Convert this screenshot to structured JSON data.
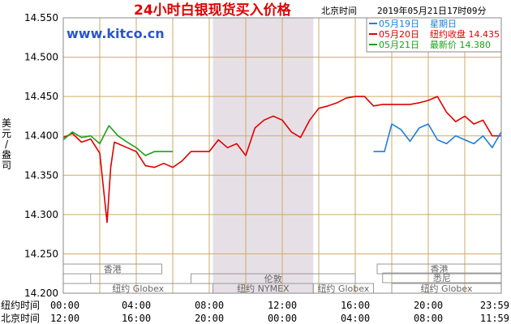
{
  "header": {
    "title": "24小时白银现货买入价格",
    "location_time": "北京时间",
    "datetime": "2019年05月21日17时09分"
  },
  "watermark": "www.kitco.cn",
  "ylabel": "美元/盎司",
  "legend": {
    "items": [
      {
        "label": "05月19日",
        "note": "星期日",
        "color": "#1a7fe0"
      },
      {
        "label": "05月20日",
        "note": "纽约收盘",
        "value": "14.435",
        "color": "#e00000"
      },
      {
        "label": "05月21日",
        "note": "最新价",
        "value": "14.380",
        "color": "#1aa11a"
      }
    ]
  },
  "x_axis": {
    "row1_label": "纽约时间",
    "row2_label": "北京时间",
    "ny_ticks": [
      "00:00",
      "04:00",
      "08:00",
      "12:00",
      "16:00",
      "20:00",
      "23:59"
    ],
    "bj_ticks": [
      "12:00",
      "16:00",
      "20:00",
      "00:00",
      "04:00",
      "08:00",
      "11:59"
    ]
  },
  "markets": {
    "row1": [
      "香港",
      "香港"
    ],
    "row2": [
      "伦敦"
    ],
    "row3": [
      "悉尼"
    ],
    "row4": [
      "纽约 Globex",
      "纽约 NYMEX",
      "纽约 Globex",
      "纽约 Globex"
    ]
  },
  "colors": {
    "grid": "#ccaa66",
    "shade": "#e6e0e6",
    "blue": "#1a7fe0",
    "red": "#e00000",
    "green": "#1aa11a",
    "title": "#e00000",
    "watermark": "#2a55cc"
  },
  "chart_data": {
    "type": "line",
    "title": "24小时白银现货买入价格",
    "ylabel": "美元/盎司",
    "y_ticks": [
      "14.550",
      "14.500",
      "14.450",
      "14.400",
      "14.350",
      "14.300",
      "14.250",
      "14.200"
    ],
    "ylim": [
      14.2,
      14.55
    ],
    "x_unit": "hours since 00:00 New York time",
    "xlim": [
      0,
      24
    ],
    "grid": true,
    "shaded_ranges": [
      [
        8.2,
        13.7
      ]
    ],
    "series": [
      {
        "name": "05月20日",
        "color": "#e00000",
        "x": [
          0,
          0.5,
          1.0,
          1.5,
          2.0,
          2.4,
          2.6,
          2.8,
          3.0,
          3.5,
          4.0,
          4.5,
          5.0,
          5.5,
          6.0,
          6.5,
          7.0,
          7.5,
          8.0,
          8.5,
          9.0,
          9.5,
          10.0,
          10.5,
          11.0,
          11.5,
          12.0,
          12.5,
          13.0,
          13.5,
          14.0,
          14.5,
          15.0,
          15.5,
          16.0,
          16.5,
          17.0,
          17.5,
          18.0,
          18.5,
          19.0,
          19.5,
          20.0,
          20.5,
          21.0,
          21.5,
          22.0,
          22.5,
          23.0,
          23.5,
          24.0
        ],
        "values": [
          14.398,
          14.403,
          14.392,
          14.396,
          14.378,
          14.29,
          14.36,
          14.392,
          14.39,
          14.385,
          14.38,
          14.362,
          14.36,
          14.365,
          14.36,
          14.368,
          14.38,
          14.38,
          14.38,
          14.395,
          14.385,
          14.39,
          14.375,
          14.41,
          14.42,
          14.425,
          14.42,
          14.405,
          14.398,
          14.42,
          14.435,
          14.438,
          14.442,
          14.448,
          14.45,
          14.45,
          14.438,
          14.44,
          14.44,
          14.44,
          14.44,
          14.442,
          14.445,
          14.45,
          14.43,
          14.418,
          14.425,
          14.415,
          14.42,
          14.4,
          14.4
        ]
      },
      {
        "name": "05月21日",
        "color": "#1aa11a",
        "x": [
          0,
          0.5,
          1.0,
          1.5,
          2.0,
          2.5,
          3.0,
          3.5,
          4.0,
          4.5,
          5.0,
          5.5,
          6.0
        ],
        "values": [
          14.395,
          14.405,
          14.398,
          14.4,
          14.39,
          14.413,
          14.4,
          14.392,
          14.385,
          14.375,
          14.38,
          14.38,
          14.38
        ]
      },
      {
        "name": "05月19日",
        "color": "#1a7fe0",
        "x": [
          17.0,
          17.5,
          17.6,
          18.0,
          18.5,
          19.0,
          19.5,
          20.0,
          20.5,
          21.0,
          21.5,
          22.0,
          22.5,
          23.0,
          23.5,
          24.0
        ],
        "values": [
          14.38,
          14.38,
          14.38,
          14.415,
          14.408,
          14.393,
          14.41,
          14.415,
          14.395,
          14.39,
          14.4,
          14.395,
          14.39,
          14.4,
          14.385,
          14.405
        ]
      }
    ]
  }
}
